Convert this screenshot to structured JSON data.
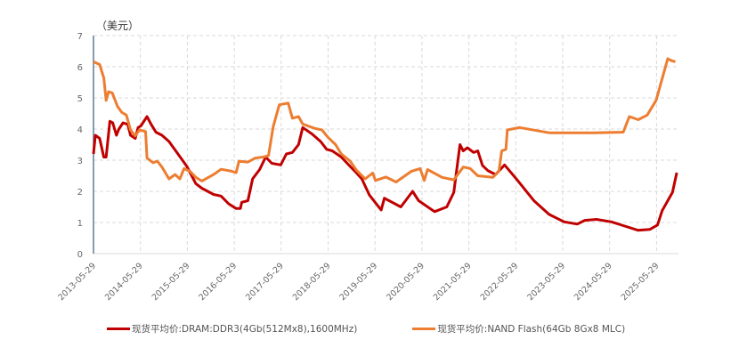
{
  "chart_data": {
    "type": "line",
    "ylabel": "（美元）",
    "ylim": [
      0,
      7
    ],
    "yticks": [
      "0",
      "1",
      "2",
      "3",
      "4",
      "5",
      "6",
      "7"
    ],
    "xlim": [
      2013.41,
      2025.9
    ],
    "xticks": [
      "2013-05-29",
      "2014-05-29",
      "2015-05-29",
      "2016-05-29",
      "2017-05-29",
      "2018-05-29",
      "2019-05-29",
      "2020-05-29",
      "2021-05-29",
      "2022-05-29",
      "2023-05-29",
      "2024-05-29",
      "2025-05-29"
    ],
    "grid": true,
    "legend_position": "bottom",
    "series": [
      {
        "name": "现货平均价:DRAM:DDR3(4Gb(512Mx8),1600MHz)",
        "color": "#c00000",
        "points": [
          [
            2013.41,
            3.2
          ],
          [
            2013.45,
            3.8
          ],
          [
            2013.54,
            3.7
          ],
          [
            2013.63,
            3.1
          ],
          [
            2013.68,
            3.1
          ],
          [
            2013.76,
            4.25
          ],
          [
            2013.82,
            4.2
          ],
          [
            2013.9,
            3.8
          ],
          [
            2013.95,
            4.0
          ],
          [
            2014.04,
            4.2
          ],
          [
            2014.14,
            4.15
          ],
          [
            2014.2,
            3.8
          ],
          [
            2014.3,
            3.7
          ],
          [
            2014.36,
            4.05
          ],
          [
            2014.42,
            4.1
          ],
          [
            2014.55,
            4.4
          ],
          [
            2014.64,
            4.15
          ],
          [
            2014.74,
            3.9
          ],
          [
            2014.87,
            3.8
          ],
          [
            2015.02,
            3.6
          ],
          [
            2015.21,
            3.2
          ],
          [
            2015.4,
            2.8
          ],
          [
            2015.59,
            2.25
          ],
          [
            2015.72,
            2.1
          ],
          [
            2015.97,
            1.9
          ],
          [
            2016.13,
            1.85
          ],
          [
            2016.29,
            1.6
          ],
          [
            2016.45,
            1.45
          ],
          [
            2016.54,
            1.45
          ],
          [
            2016.57,
            1.65
          ],
          [
            2016.7,
            1.7
          ],
          [
            2016.8,
            2.4
          ],
          [
            2016.95,
            2.7
          ],
          [
            2017.08,
            3.1
          ],
          [
            2017.21,
            2.9
          ],
          [
            2017.4,
            2.85
          ],
          [
            2017.52,
            3.2
          ],
          [
            2017.65,
            3.25
          ],
          [
            2017.78,
            3.5
          ],
          [
            2017.87,
            4.05
          ],
          [
            2018.06,
            3.85
          ],
          [
            2018.25,
            3.6
          ],
          [
            2018.38,
            3.35
          ],
          [
            2018.5,
            3.3
          ],
          [
            2018.69,
            3.1
          ],
          [
            2018.88,
            2.8
          ],
          [
            2019.01,
            2.6
          ],
          [
            2019.13,
            2.4
          ],
          [
            2019.29,
            1.88
          ],
          [
            2019.54,
            1.4
          ],
          [
            2019.61,
            1.78
          ],
          [
            2019.96,
            1.5
          ],
          [
            2020.21,
            2.0
          ],
          [
            2020.34,
            1.7
          ],
          [
            2020.68,
            1.35
          ],
          [
            2020.94,
            1.5
          ],
          [
            2021.09,
            1.97
          ],
          [
            2021.22,
            3.5
          ],
          [
            2021.29,
            3.3
          ],
          [
            2021.38,
            3.4
          ],
          [
            2021.51,
            3.25
          ],
          [
            2021.6,
            3.3
          ],
          [
            2021.7,
            2.83
          ],
          [
            2021.82,
            2.66
          ],
          [
            2021.98,
            2.54
          ],
          [
            2022.17,
            2.85
          ],
          [
            2022.45,
            2.35
          ],
          [
            2022.8,
            1.69
          ],
          [
            2023.12,
            1.26
          ],
          [
            2023.44,
            1.02
          ],
          [
            2023.72,
            0.95
          ],
          [
            2023.88,
            1.07
          ],
          [
            2024.13,
            1.1
          ],
          [
            2024.45,
            1.02
          ],
          [
            2024.7,
            0.9
          ],
          [
            2025.02,
            0.75
          ],
          [
            2025.27,
            0.78
          ],
          [
            2025.43,
            0.92
          ],
          [
            2025.53,
            1.38
          ],
          [
            2025.75,
            1.97
          ],
          [
            2025.84,
            2.6
          ]
        ]
      },
      {
        "name": "现货平均价:NAND Flash(64Gb 8Gx8 MLC)",
        "color": "#ed7d31",
        "points": [
          [
            2013.41,
            6.16
          ],
          [
            2013.54,
            6.07
          ],
          [
            2013.63,
            5.64
          ],
          [
            2013.68,
            4.92
          ],
          [
            2013.73,
            5.2
          ],
          [
            2013.81,
            5.16
          ],
          [
            2013.92,
            4.73
          ],
          [
            2014.01,
            4.54
          ],
          [
            2014.11,
            4.45
          ],
          [
            2014.2,
            3.97
          ],
          [
            2014.3,
            3.78
          ],
          [
            2014.39,
            3.97
          ],
          [
            2014.52,
            3.92
          ],
          [
            2014.55,
            3.07
          ],
          [
            2014.68,
            2.92
          ],
          [
            2014.77,
            2.97
          ],
          [
            2014.87,
            2.78
          ],
          [
            2015.02,
            2.4
          ],
          [
            2015.15,
            2.54
          ],
          [
            2015.25,
            2.4
          ],
          [
            2015.34,
            2.73
          ],
          [
            2015.47,
            2.64
          ],
          [
            2015.59,
            2.45
          ],
          [
            2015.72,
            2.33
          ],
          [
            2015.97,
            2.54
          ],
          [
            2016.13,
            2.71
          ],
          [
            2016.35,
            2.65
          ],
          [
            2016.45,
            2.6
          ],
          [
            2016.51,
            2.97
          ],
          [
            2016.7,
            2.94
          ],
          [
            2016.86,
            3.07
          ],
          [
            2017.05,
            3.11
          ],
          [
            2017.14,
            3.15
          ],
          [
            2017.24,
            4.07
          ],
          [
            2017.37,
            4.78
          ],
          [
            2017.56,
            4.83
          ],
          [
            2017.65,
            4.35
          ],
          [
            2017.78,
            4.4
          ],
          [
            2017.87,
            4.16
          ],
          [
            2018.13,
            4.02
          ],
          [
            2018.28,
            3.97
          ],
          [
            2018.41,
            3.73
          ],
          [
            2018.57,
            3.5
          ],
          [
            2018.69,
            3.2
          ],
          [
            2018.88,
            2.97
          ],
          [
            2019.01,
            2.69
          ],
          [
            2019.2,
            2.4
          ],
          [
            2019.36,
            2.59
          ],
          [
            2019.42,
            2.35
          ],
          [
            2019.64,
            2.46
          ],
          [
            2019.86,
            2.3
          ],
          [
            2020.18,
            2.64
          ],
          [
            2020.37,
            2.73
          ],
          [
            2020.46,
            2.35
          ],
          [
            2020.53,
            2.7
          ],
          [
            2020.84,
            2.45
          ],
          [
            2021.09,
            2.37
          ],
          [
            2021.29,
            2.78
          ],
          [
            2021.44,
            2.73
          ],
          [
            2021.6,
            2.5
          ],
          [
            2021.92,
            2.45
          ],
          [
            2022.05,
            2.64
          ],
          [
            2022.11,
            3.3
          ],
          [
            2022.2,
            3.35
          ],
          [
            2022.23,
            3.97
          ],
          [
            2022.49,
            4.05
          ],
          [
            2023.12,
            3.88
          ],
          [
            2024.07,
            3.88
          ],
          [
            2024.7,
            3.9
          ],
          [
            2024.83,
            4.4
          ],
          [
            2025.02,
            4.3
          ],
          [
            2025.21,
            4.45
          ],
          [
            2025.4,
            4.92
          ],
          [
            2025.56,
            5.78
          ],
          [
            2025.65,
            6.26
          ],
          [
            2025.72,
            6.2
          ],
          [
            2025.81,
            6.16
          ]
        ]
      }
    ]
  }
}
